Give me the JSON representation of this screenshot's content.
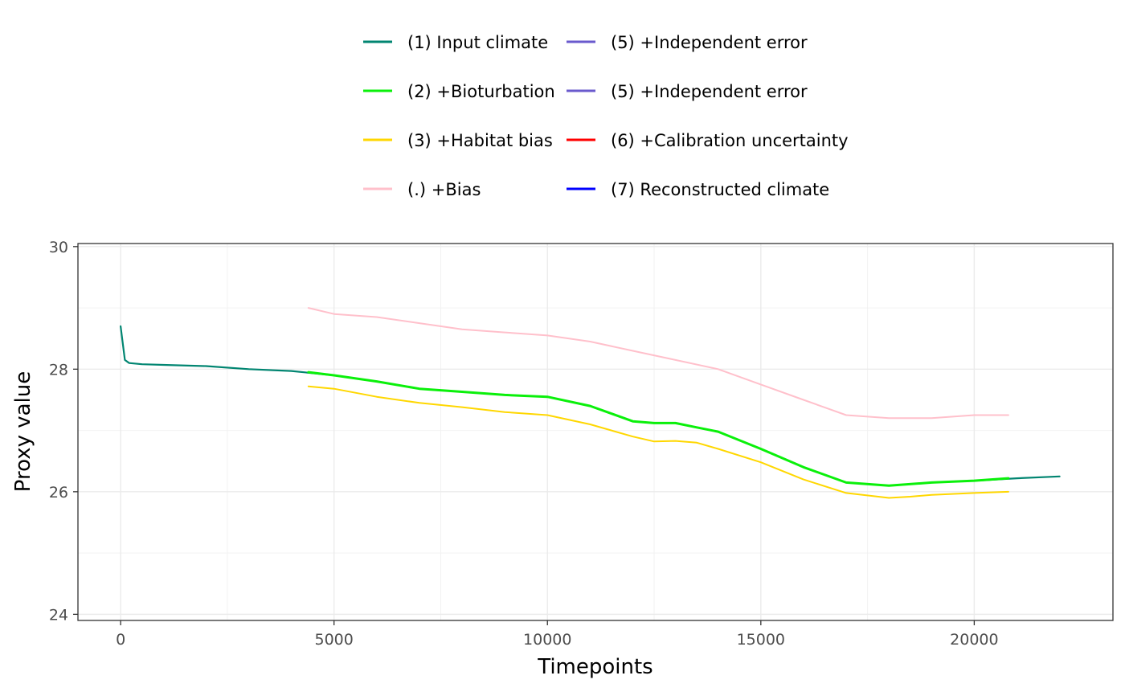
{
  "chart_data": {
    "type": "line",
    "xlabel": "Timepoints",
    "ylabel": "Proxy value",
    "xlim": [
      -1000,
      23250
    ],
    "ylim": [
      23.9,
      30.05
    ],
    "x_ticks": [
      0,
      5000,
      10000,
      15000,
      20000
    ],
    "x_tick_labels": [
      "0",
      "5000",
      "10000",
      "15000",
      "20000"
    ],
    "y_ticks": [
      24,
      26,
      28,
      30
    ],
    "y_tick_labels": [
      "24",
      "26",
      "28",
      "30"
    ],
    "grid": true,
    "legend_position": "top",
    "legend": [
      {
        "label": "(1) Input climate",
        "color": "#018571"
      },
      {
        "label": "(2) +Bioturbation",
        "color": "#0AF00A"
      },
      {
        "label": "(3) +Habitat bias",
        "color": "#FFD700"
      },
      {
        "label": "(.) +Bias",
        "color": "#FFC0CB"
      },
      {
        "label": "(5) +Independent error",
        "color": "#6A5ACD"
      },
      {
        "label": "(5) +Independent error",
        "color": "#6A5ACD"
      },
      {
        "label": "(6) +Calibration uncertainty",
        "color": "#FF0000"
      },
      {
        "label": "(7) Reconstructed climate",
        "color": "#0000FF"
      }
    ],
    "series": [
      {
        "name": "(1) Input climate",
        "color": "#018571",
        "x": [
          0,
          100,
          200,
          500,
          1000,
          2000,
          3000,
          4000,
          5000,
          6000,
          7000,
          8000,
          9000,
          10000,
          11000,
          12000,
          12500,
          13000,
          13500,
          14000,
          15000,
          16000,
          17000,
          18000,
          19000,
          20000,
          21000,
          22000
        ],
        "y": [
          28.7,
          28.15,
          28.1,
          28.08,
          28.07,
          28.05,
          28.0,
          27.97,
          27.9,
          27.8,
          27.68,
          27.63,
          27.58,
          27.55,
          27.4,
          27.15,
          27.12,
          27.12,
          27.05,
          26.98,
          26.7,
          26.4,
          26.15,
          26.1,
          26.15,
          26.18,
          26.22,
          26.25
        ]
      },
      {
        "name": "(2) +Bioturbation",
        "color": "#0AF00A",
        "x": [
          4400,
          5000,
          6000,
          7000,
          8000,
          9000,
          10000,
          11000,
          12000,
          12500,
          13000,
          13500,
          14000,
          15000,
          16000,
          17000,
          18000,
          19000,
          20000,
          20800
        ],
        "y": [
          27.95,
          27.9,
          27.8,
          27.68,
          27.63,
          27.58,
          27.55,
          27.4,
          27.15,
          27.12,
          27.12,
          27.05,
          26.98,
          26.7,
          26.4,
          26.15,
          26.1,
          26.15,
          26.18,
          26.22
        ]
      },
      {
        "name": "(3) +Habitat bias",
        "color": "#FFD700",
        "x": [
          4400,
          5000,
          6000,
          7000,
          8000,
          9000,
          10000,
          11000,
          12000,
          12500,
          13000,
          13500,
          14000,
          15000,
          16000,
          17000,
          18000,
          18500,
          19000,
          20000,
          20800
        ],
        "y": [
          27.72,
          27.68,
          27.55,
          27.45,
          27.38,
          27.3,
          27.25,
          27.1,
          26.9,
          26.82,
          26.83,
          26.8,
          26.7,
          26.48,
          26.2,
          25.98,
          25.9,
          25.92,
          25.95,
          25.98,
          26.0
        ]
      },
      {
        "name": "(.) +Bias",
        "color": "#FFC0CB",
        "x": [
          4400,
          5000,
          6000,
          7000,
          8000,
          9000,
          10000,
          11000,
          12000,
          13000,
          14000,
          15000,
          16000,
          17000,
          18000,
          19000,
          20000,
          20800
        ],
        "y": [
          29.0,
          28.9,
          28.85,
          28.75,
          28.65,
          28.6,
          28.55,
          28.45,
          28.3,
          28.15,
          28.0,
          27.75,
          27.5,
          27.25,
          27.2,
          27.2,
          27.25,
          27.25
        ]
      }
    ]
  }
}
